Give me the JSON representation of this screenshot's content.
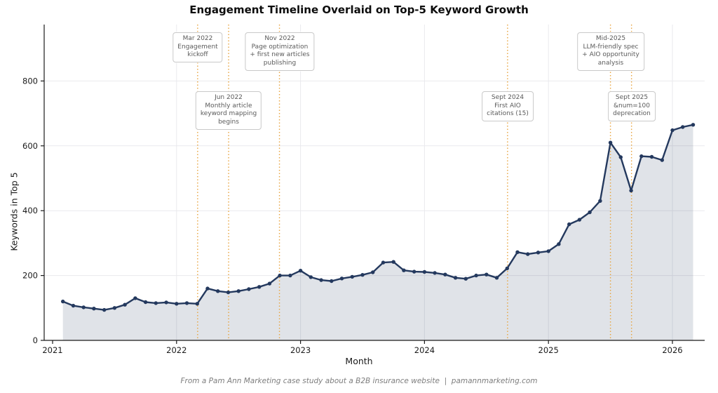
{
  "footer": {
    "text": "From a Pam Ann Marketing case study about a B2B insurance website  |  pamannmarketing.com"
  },
  "chart_data": {
    "type": "area",
    "title": "Engagement Timeline Overlaid on Top-5 Keyword Growth",
    "xlabel": "Month",
    "ylabel": "Keywords in Top 5",
    "series": [
      {
        "name": "Keywords in Top 5",
        "start_month": "2021-02",
        "interval": "monthly",
        "values": [
          120,
          107,
          102,
          98,
          94,
          100,
          110,
          130,
          118,
          115,
          117,
          113,
          115,
          113,
          160,
          152,
          148,
          152,
          158,
          165,
          175,
          200,
          200,
          215,
          195,
          186,
          183,
          191,
          196,
          202,
          210,
          240,
          242,
          216,
          212,
          211,
          208,
          203,
          193,
          190,
          200,
          203,
          193,
          222,
          272,
          266,
          271,
          275,
          297,
          358,
          372,
          395,
          430,
          610,
          565,
          462,
          568,
          566,
          556,
          648,
          658,
          665
        ]
      }
    ],
    "x_ticks": [
      2021,
      2022,
      2023,
      2024,
      2025,
      2026
    ],
    "y_ticks": [
      0,
      200,
      400,
      600,
      800
    ],
    "xlim": [
      2020.93,
      2026.27
    ],
    "ylim": [
      0,
      973
    ],
    "grid": true,
    "legend": "none",
    "annotations": [
      {
        "x_year": 2022.17,
        "row": "top",
        "lines": [
          "Mar 2022",
          "Engagement",
          "kickoff"
        ]
      },
      {
        "x_year": 2022.42,
        "row": "mid",
        "lines": [
          "Jun 2022",
          "Monthly article",
          "keyword mapping",
          "begins"
        ]
      },
      {
        "x_year": 2022.83,
        "row": "top",
        "lines": [
          "Nov 2022",
          "Page optimization",
          "+ first new articles",
          "publishing"
        ]
      },
      {
        "x_year": 2024.67,
        "row": "mid",
        "lines": [
          "Sept 2024",
          "First AIO",
          "citations (15)"
        ]
      },
      {
        "x_year": 2025.5,
        "row": "top",
        "lines": [
          "Mid-2025",
          "LLM-friendly spec",
          "+ AIO opportunity",
          "analysis"
        ]
      },
      {
        "x_year": 2025.67,
        "row": "mid",
        "lines": [
          "Sept 2025",
          "&num=100",
          "deprecation"
        ]
      }
    ],
    "colors": {
      "line": "#24395e",
      "marker": "#24395e",
      "fill": "#24395e",
      "fill_opacity": 0.14,
      "annotation_line": "#e8a33d",
      "grid": "#e9e9ed",
      "axis": "#1a1a1a",
      "annotation_text": "#5a5a5a",
      "annotation_border": "#c9c9c9"
    }
  }
}
